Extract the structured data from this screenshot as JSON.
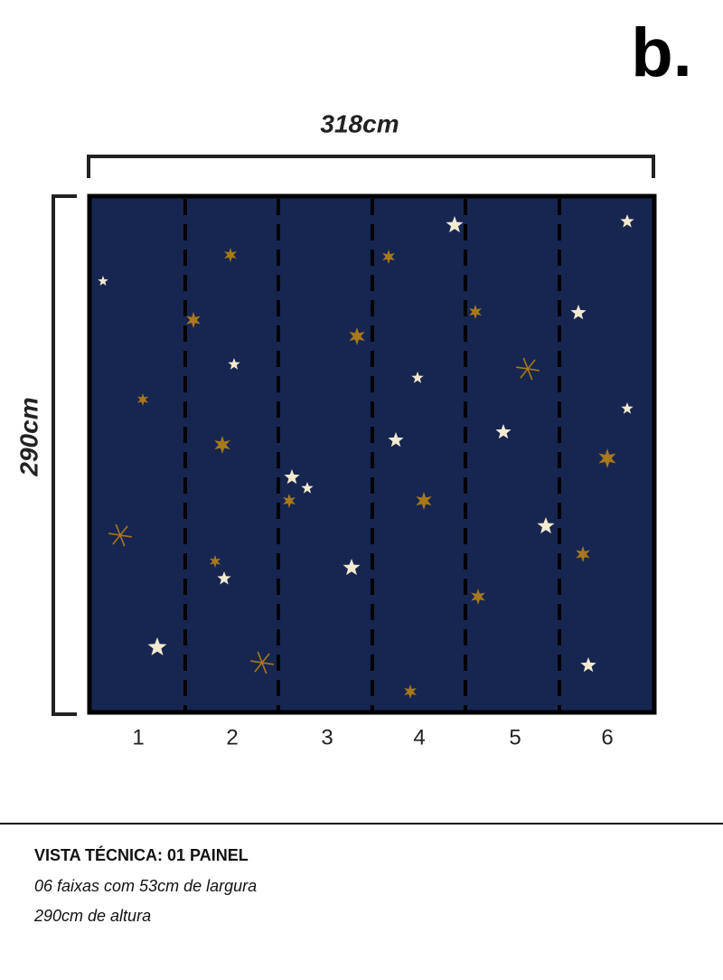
{
  "logo": "b.",
  "dimensions": {
    "width": "318cm",
    "height": "290cm"
  },
  "panels": [
    "1",
    "2",
    "3",
    "4",
    "5",
    "6"
  ],
  "footer": {
    "title": "VISTA TÉCNICA: 01 PAINEL",
    "line1": "06 faixas com 53cm de largura",
    "line2": "290cm de altura"
  }
}
